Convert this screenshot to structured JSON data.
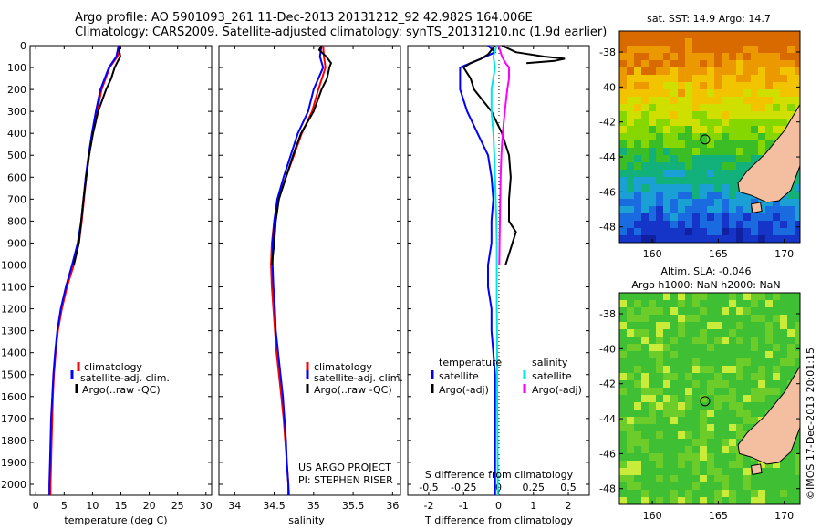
{
  "header": {
    "line1": "Argo profile: AO 5901093_261 11-Dec-2013 20131212_92 42.982S 164.006E",
    "line2": "Climatology: CARS2009. Satellite-adjusted climatology: synTS_20131210.nc (1.9d earlier)"
  },
  "side_stamp": "©IMOS 17-Dec-2013 20:01:15",
  "project": {
    "line1": "US ARGO PROJECT",
    "line2": "PI: STEPHEN RISER"
  },
  "colors": {
    "climatology": "#ff0000",
    "satellite": "#0000ff",
    "argo": "#000000",
    "sal_sat": "#00e5e5",
    "sal_argo": "#ff00ff"
  },
  "chart_data": [
    {
      "type": "line",
      "xlabel": "temperature (deg C)",
      "xticks": [
        0,
        5,
        10,
        15,
        20,
        25,
        30
      ],
      "xlim": [
        -1,
        31
      ],
      "ylim": [
        2050,
        0
      ],
      "yticks": [
        0,
        100,
        200,
        300,
        400,
        500,
        600,
        700,
        800,
        900,
        1000,
        1100,
        1200,
        1300,
        1400,
        1500,
        1600,
        1700,
        1800,
        1900,
        2000
      ],
      "legend": [
        {
          "label": "climatology",
          "color": "#ff0000"
        },
        {
          "label": "satellite-adj. clim.",
          "color": "#0000ff"
        },
        {
          "label": "Argo(..raw -QC)",
          "color": "#000000"
        }
      ],
      "series": [
        {
          "name": "climatology",
          "color": "#ff0000",
          "depth": [
            0,
            50,
            100,
            200,
            300,
            400,
            500,
            600,
            700,
            800,
            900,
            1000,
            1100,
            1200,
            1300,
            1400,
            1500,
            1600,
            1700,
            1800,
            1900,
            2000,
            2050
          ],
          "values": [
            14.9,
            14.4,
            13.0,
            11.6,
            10.8,
            10.0,
            9.4,
            8.9,
            8.5,
            8.1,
            7.6,
            6.7,
            5.5,
            4.6,
            3.9,
            3.5,
            3.2,
            3.0,
            2.9,
            2.8,
            2.7,
            2.6,
            2.6
          ]
        },
        {
          "name": "satellite-adj. clim.",
          "color": "#0000ff",
          "depth": [
            0,
            50,
            100,
            200,
            300,
            400,
            500,
            600,
            700,
            800,
            900,
            1000,
            1100,
            1200,
            1300,
            1400,
            1500,
            1600,
            1700,
            1800,
            1900,
            2000,
            2050
          ],
          "values": [
            14.6,
            14.2,
            12.9,
            11.4,
            10.6,
            9.9,
            9.3,
            8.8,
            8.4,
            8.0,
            7.4,
            6.4,
            5.3,
            4.4,
            3.8,
            3.4,
            3.1,
            2.9,
            2.7,
            2.6,
            2.5,
            2.4,
            2.4
          ]
        },
        {
          "name": "Argo(..raw -QC)",
          "color": "#000000",
          "depth": [
            0,
            20,
            50,
            80,
            100,
            150,
            200,
            300,
            400,
            500,
            600,
            700,
            800,
            900,
            1000
          ],
          "values": [
            14.8,
            14.7,
            14.9,
            14.3,
            13.9,
            13.3,
            12.4,
            11.0,
            10.1,
            9.4,
            8.9,
            8.4,
            8.0,
            7.6,
            6.7
          ]
        }
      ]
    },
    {
      "type": "line",
      "xlabel": "salinity",
      "xticks": [
        34,
        34.5,
        35,
        35.5,
        36
      ],
      "xtick_labels": [
        "34",
        "34.5",
        "35",
        "35.5",
        "36"
      ],
      "xlim": [
        33.8,
        36.1
      ],
      "ylim": [
        2050,
        0
      ],
      "legend": [
        {
          "label": "climatology",
          "color": "#ff0000"
        },
        {
          "label": "satellite-adj. clim.",
          "color": "#0000ff"
        },
        {
          "label": "Argo(..raw -QC)",
          "color": "#000000"
        }
      ],
      "series": [
        {
          "name": "climatology",
          "color": "#ff0000",
          "depth": [
            0,
            50,
            100,
            200,
            300,
            400,
            500,
            600,
            700,
            800,
            900,
            1000,
            1100,
            1200,
            1300,
            1400,
            1500,
            1600,
            1700,
            1800,
            1900,
            2000,
            2050
          ],
          "values": [
            35.12,
            35.13,
            35.15,
            35.06,
            34.98,
            34.85,
            34.75,
            34.65,
            34.55,
            34.5,
            34.47,
            34.46,
            34.47,
            34.49,
            34.51,
            34.53,
            34.56,
            34.59,
            34.62,
            34.64,
            34.66,
            34.68,
            34.69
          ]
        },
        {
          "name": "satellite-adj. clim.",
          "color": "#0000ff",
          "depth": [
            0,
            50,
            100,
            200,
            300,
            400,
            500,
            600,
            700,
            800,
            900,
            1000,
            1100,
            1200,
            1300,
            1400,
            1500,
            1600,
            1700,
            1800,
            1900,
            2000,
            2050
          ],
          "values": [
            35.1,
            35.08,
            35.12,
            35.0,
            34.93,
            34.8,
            34.71,
            34.62,
            34.54,
            34.5,
            34.48,
            34.48,
            34.49,
            34.51,
            34.52,
            34.55,
            34.58,
            34.61,
            34.63,
            34.65,
            34.66,
            34.68,
            34.68
          ]
        },
        {
          "name": "Argo(..raw -QC)",
          "color": "#000000",
          "depth": [
            0,
            20,
            50,
            80,
            100,
            150,
            200,
            300,
            400,
            500,
            600,
            700,
            800,
            900,
            1000
          ],
          "values": [
            35.1,
            35.07,
            35.16,
            35.22,
            35.2,
            35.17,
            35.1,
            35.0,
            34.84,
            34.74,
            34.65,
            34.56,
            34.52,
            34.5,
            34.47
          ]
        }
      ]
    },
    {
      "type": "line",
      "xlabel": "T difference from climatology",
      "xlabel2": "S difference from climatology",
      "xticks": [
        -2,
        -1,
        0,
        1,
        2
      ],
      "xticks_top": [
        -0.5,
        -0.25,
        0,
        0.25,
        0.5
      ],
      "xtick_top_labels": [
        "-0.5",
        "-0.25",
        "0",
        "0.25",
        "0.5"
      ],
      "xlim": [
        -2.6,
        2.6
      ],
      "ylim": [
        2050,
        0
      ],
      "legend": [
        {
          "group": "temperature",
          "entries": [
            {
              "label": "satellite",
              "color": "#0000ff"
            },
            {
              "label": "Argo(-adj)",
              "color": "#000000"
            }
          ]
        },
        {
          "group": "salinity",
          "entries": [
            {
              "label": "satellite",
              "color": "#00e5e5"
            },
            {
              "label": "Argo(-adj)",
              "color": "#ff00ff"
            }
          ]
        }
      ],
      "series": [
        {
          "name": "T satellite",
          "color": "#0000ff",
          "depth": [
            0,
            30,
            60,
            100,
            200,
            300,
            400,
            500,
            600,
            700,
            800,
            900,
            1000,
            1100,
            1200,
            1300,
            1400,
            1500,
            1600,
            1700,
            1800,
            1900,
            2000,
            2050
          ],
          "values": [
            -0.3,
            -0.1,
            -0.5,
            -1.1,
            -1.1,
            -0.9,
            -0.6,
            -0.3,
            -0.2,
            -0.15,
            -0.2,
            -0.2,
            -0.3,
            -0.3,
            -0.2,
            -0.2,
            -0.15,
            -0.1,
            -0.1,
            -0.1,
            -0.1,
            -0.1,
            -0.1,
            -0.1
          ]
        },
        {
          "name": "T Argo(-adj)",
          "color": "#000000",
          "depth": [
            0,
            20,
            40,
            60,
            80,
            100,
            150,
            200,
            300,
            400,
            500,
            600,
            700,
            800,
            850,
            900,
            950,
            1000
          ],
          "values": [
            -0.1,
            -0.2,
            -0.3,
            -0.5,
            -0.8,
            -1.0,
            -0.8,
            -0.7,
            -0.2,
            0.1,
            0.3,
            0.35,
            0.3,
            0.3,
            0.5,
            0.4,
            0.3,
            0.2
          ]
        },
        {
          "name": "S satellite",
          "color": "#00e5e5",
          "depth": [
            0,
            50,
            100,
            200,
            300,
            400,
            500,
            600,
            700,
            800,
            900,
            1000,
            1200,
            1400,
            1600,
            1800,
            2000,
            2050
          ],
          "values": [
            -0.05,
            -0.15,
            -0.1,
            -0.2,
            -0.2,
            -0.15,
            -0.12,
            -0.1,
            -0.08,
            -0.06,
            -0.05,
            -0.05,
            -0.05,
            -0.04,
            -0.04,
            -0.03,
            -0.02,
            -0.02
          ]
        },
        {
          "name": "S Argo(-adj)",
          "color": "#ff00ff",
          "depth": [
            0,
            50,
            80,
            100,
            150,
            200,
            300,
            400,
            500,
            600,
            700,
            800,
            900,
            1000
          ],
          "values": [
            0.0,
            0.1,
            0.2,
            0.3,
            0.3,
            0.25,
            0.18,
            0.12,
            0.08,
            0.06,
            0.05,
            0.04,
            0.03,
            0.02
          ]
        },
        {
          "name": "Argo spike",
          "color": "#000000",
          "depth": [
            0,
            30,
            50,
            60,
            70,
            80
          ],
          "values": [
            0.1,
            0.5,
            1.3,
            1.9,
            1.6,
            0.8
          ]
        }
      ]
    }
  ],
  "maps": [
    {
      "title": "sat. SST: 14.9  Argo: 14.7",
      "yticks": [
        -38,
        -40,
        -42,
        -44,
        -46,
        -48
      ],
      "xticks": [
        160,
        165,
        170
      ],
      "xlim": [
        157.5,
        171.2
      ],
      "ylim": [
        -48.9,
        -36.8
      ],
      "marker": {
        "lon": 164.0,
        "lat": -43.0
      }
    },
    {
      "title1": "Altim. SLA: -0.046",
      "title2": "Argo h1000: NaN h2000: NaN",
      "yticks": [
        -38,
        -40,
        -42,
        -44,
        -46,
        -48
      ],
      "xticks": [
        160,
        165,
        170
      ],
      "xlim": [
        157.5,
        171.2
      ],
      "ylim": [
        -48.9,
        -36.8
      ],
      "marker": {
        "lon": 164.0,
        "lat": -43.0
      }
    }
  ]
}
